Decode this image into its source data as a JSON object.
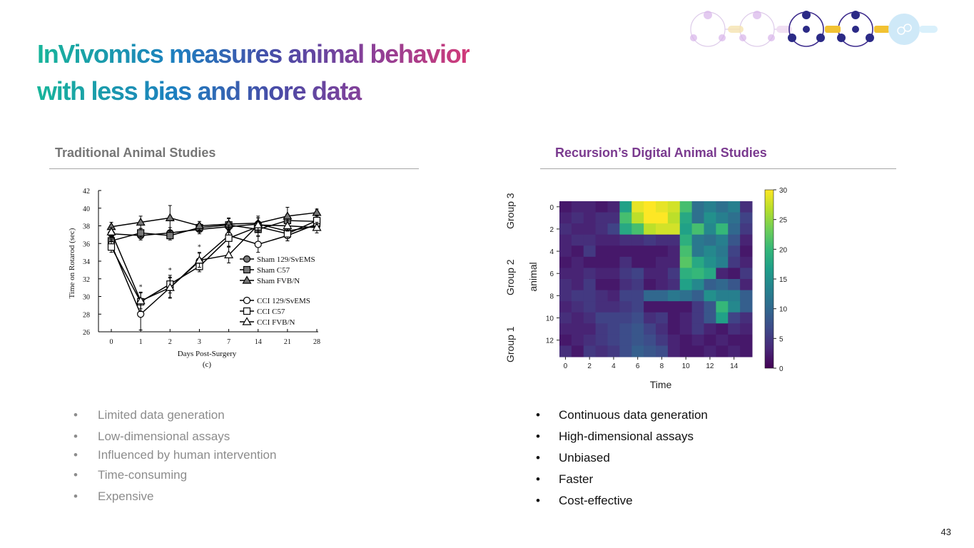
{
  "title": {
    "line1": "InVivomics measures animal behavior",
    "line2": "with less bias and more data"
  },
  "left_section": {
    "heading": "Traditional Animal Studies",
    "heading_color": "#767676",
    "bullets": [
      "Limited data generation",
      "Low-dimensional assays",
      "Influenced by human intervention",
      "Time-consuming",
      "Expensive"
    ]
  },
  "right_section": {
    "heading": "Recursion’s Digital Animal Studies",
    "heading_color": "#7a3a8f",
    "bullets": [
      "Continuous data generation",
      "High-dimensional assays",
      "Unbiased",
      "Faster",
      "Cost-effective"
    ],
    "group_labels": [
      "Group 3",
      "Group 2",
      "Group 1"
    ]
  },
  "page_number": "43",
  "bullet_char": "•",
  "chart_data": [
    {
      "type": "line",
      "xlabel": "Days Post-Surgery",
      "caption": "(c)",
      "ylabel": "Time on Rotarod (sec)",
      "categories": [
        "0",
        "1",
        "2",
        "3",
        "7",
        "14",
        "21",
        "28"
      ],
      "ylim": [
        26,
        42
      ],
      "yticks": [
        26,
        28,
        30,
        32,
        34,
        36,
        38,
        40,
        42
      ],
      "star_marker": "*",
      "star_indices": [
        1,
        2,
        3
      ],
      "series": [
        {
          "name": "Sham 129/SvEMS",
          "marker": "circle",
          "fill": "#777777",
          "values": [
            37.1,
            36.9,
            37.2,
            37.6,
            37.9,
            38.2,
            37.4,
            38.0
          ],
          "err": [
            0.4,
            0.5,
            0.6,
            0.5,
            0.6,
            0.7,
            0.7,
            0.5
          ]
        },
        {
          "name": "Sham C57",
          "marker": "square",
          "fill": "#777777",
          "values": [
            36.3,
            37.2,
            36.9,
            37.8,
            38.1,
            37.6,
            38.6,
            38.5
          ],
          "err": [
            0.6,
            0.5,
            0.5,
            0.5,
            0.7,
            0.7,
            0.7,
            0.6
          ]
        },
        {
          "name": "Sham FVB/N",
          "marker": "triangle",
          "fill": "#777777",
          "values": [
            37.9,
            38.4,
            38.9,
            38.0,
            38.2,
            38.3,
            39.1,
            39.5
          ],
          "err": [
            0.5,
            0.7,
            1.4,
            0.5,
            0.7,
            0.8,
            1.0,
            0.4
          ]
        },
        {
          "name": "CCI 129/SvEMS",
          "marker": "circle",
          "fill": "#ffffff",
          "values": [
            35.9,
            28.0,
            31.0,
            34.0,
            36.9,
            35.9,
            36.9,
            38.2
          ],
          "err": [
            0.6,
            1.8,
            1.2,
            1.0,
            1.2,
            0.9,
            0.6,
            0.6
          ]
        },
        {
          "name": "CCI C57",
          "marker": "square",
          "fill": "#ffffff",
          "values": [
            35.6,
            29.4,
            31.4,
            33.4,
            36.6,
            37.9,
            37.1,
            38.6
          ],
          "err": [
            0.6,
            1.1,
            1.0,
            0.6,
            1.0,
            0.6,
            0.8,
            0.6
          ]
        },
        {
          "name": "CCI FVB/N",
          "marker": "triangle",
          "fill": "#ffffff",
          "values": [
            37.3,
            29.5,
            31.0,
            34.1,
            34.7,
            38.1,
            38.0,
            37.8
          ],
          "err": [
            0.5,
            0.9,
            1.1,
            0.8,
            0.9,
            0.8,
            0.6,
            0.6
          ]
        }
      ]
    },
    {
      "type": "heatmap",
      "xlabel": "Time",
      "ylabel": "animal",
      "xticks": [
        0,
        2,
        4,
        6,
        8,
        10,
        12,
        14
      ],
      "yticks": [
        0,
        2,
        4,
        6,
        8,
        10,
        12
      ],
      "colorbar_ticks": [
        0,
        5,
        10,
        15,
        20,
        25,
        30
      ],
      "vmin": 0,
      "vmax": 30,
      "colormap": "viridis",
      "values": [
        [
          2,
          3,
          3,
          2,
          3,
          17,
          29,
          30,
          29,
          28,
          21,
          11,
          13,
          11,
          13,
          4
        ],
        [
          3,
          4,
          3,
          4,
          4,
          21,
          27,
          30,
          30,
          27,
          18,
          11,
          15,
          13,
          11,
          6
        ],
        [
          4,
          3,
          3,
          4,
          6,
          18,
          21,
          27,
          28,
          28,
          17,
          21,
          14,
          20,
          10,
          5
        ],
        [
          3,
          4,
          4,
          3,
          3,
          4,
          4,
          5,
          4,
          4,
          19,
          12,
          11,
          13,
          8,
          3
        ],
        [
          3,
          2,
          5,
          2,
          2,
          2,
          2,
          2,
          2,
          3,
          21,
          12,
          14,
          12,
          6,
          2
        ],
        [
          2,
          3,
          2,
          2,
          2,
          4,
          2,
          2,
          3,
          3,
          22,
          18,
          15,
          13,
          5,
          3
        ],
        [
          3,
          3,
          4,
          3,
          3,
          5,
          6,
          3,
          3,
          5,
          19,
          20,
          18,
          3,
          2,
          5
        ],
        [
          4,
          3,
          5,
          2,
          2,
          4,
          5,
          2,
          3,
          4,
          17,
          14,
          9,
          10,
          8,
          3
        ],
        [
          4,
          5,
          5,
          4,
          3,
          6,
          6,
          10,
          10,
          12,
          11,
          9,
          15,
          13,
          13,
          9
        ],
        [
          3,
          4,
          5,
          4,
          4,
          5,
          6,
          2,
          2,
          2,
          2,
          5,
          8,
          20,
          14,
          9
        ],
        [
          4,
          3,
          4,
          6,
          6,
          6,
          7,
          4,
          5,
          2,
          3,
          5,
          8,
          17,
          6,
          4
        ],
        [
          3,
          3,
          3,
          5,
          6,
          7,
          8,
          6,
          4,
          2,
          3,
          5,
          3,
          2,
          4,
          3
        ],
        [
          2,
          3,
          4,
          5,
          6,
          7,
          8,
          7,
          5,
          3,
          2,
          3,
          2,
          3,
          2,
          2
        ],
        [
          4,
          2,
          5,
          4,
          5,
          7,
          9,
          8,
          7,
          3,
          2,
          2,
          3,
          2,
          3,
          2
        ]
      ]
    }
  ]
}
